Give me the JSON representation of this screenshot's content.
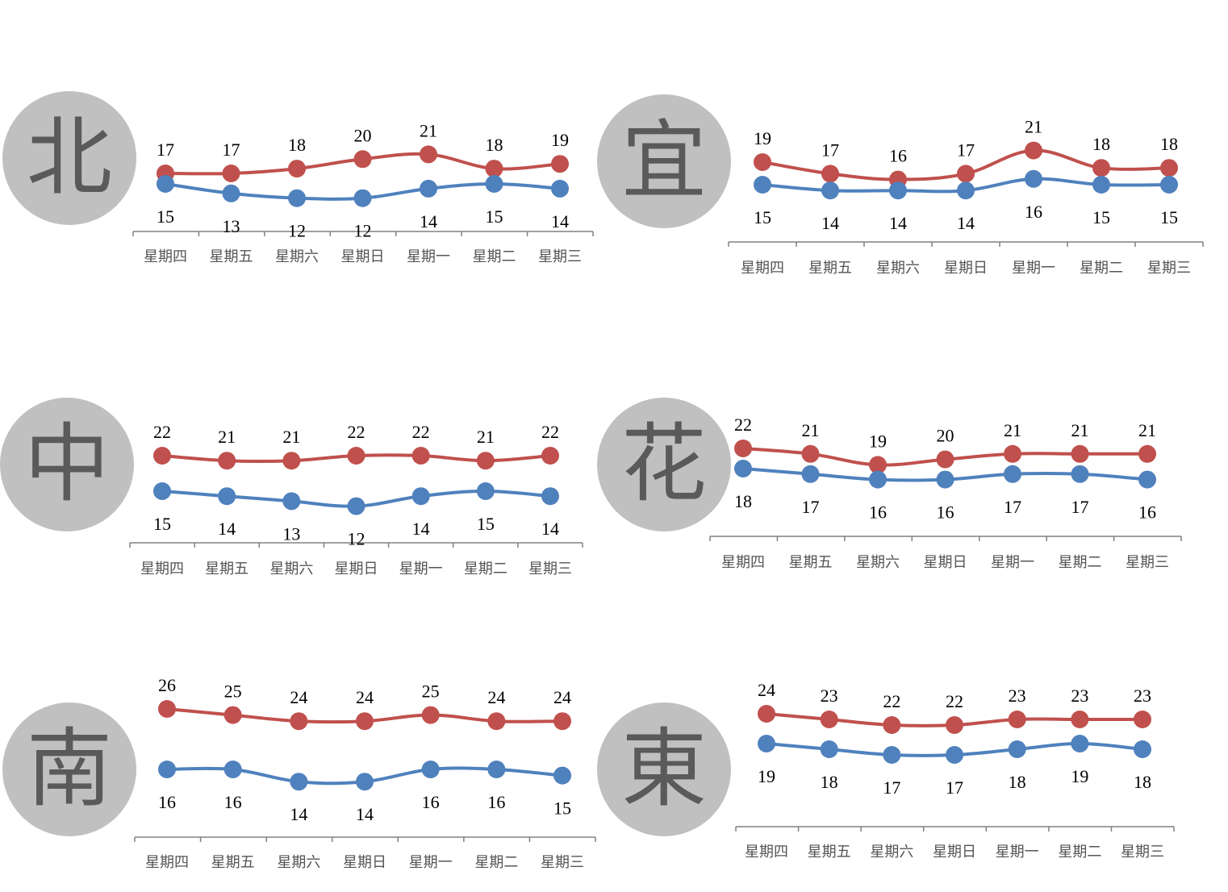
{
  "colors": {
    "high": "#c0504d",
    "low": "#4f81bd",
    "circle": "#c0c0c0",
    "axis": "#808080"
  },
  "categories": [
    "星期四",
    "星期五",
    "星期六",
    "星期日",
    "星期一",
    "星期二",
    "星期三"
  ],
  "chart_data": [
    {
      "type": "line",
      "region": "北",
      "categories": [
        "星期四",
        "星期五",
        "星期六",
        "星期日",
        "星期一",
        "星期二",
        "星期三"
      ],
      "series": [
        {
          "values": [
            17,
            17,
            18,
            20,
            21,
            18,
            19
          ]
        },
        {
          "values": [
            15,
            13,
            12,
            12,
            14,
            15,
            14
          ]
        }
      ]
    },
    {
      "type": "line",
      "region": "宜",
      "categories": [
        "星期四",
        "星期五",
        "星期六",
        "星期日",
        "星期一",
        "星期二",
        "星期三"
      ],
      "series": [
        {
          "values": [
            19,
            17,
            16,
            17,
            21,
            18,
            18
          ]
        },
        {
          "values": [
            15,
            14,
            14,
            14,
            16,
            15,
            15
          ]
        }
      ]
    },
    {
      "type": "line",
      "region": "中",
      "categories": [
        "星期四",
        "星期五",
        "星期六",
        "星期日",
        "星期一",
        "星期二",
        "星期三"
      ],
      "series": [
        {
          "values": [
            22,
            21,
            21,
            22,
            22,
            21,
            22
          ]
        },
        {
          "values": [
            15,
            14,
            13,
            12,
            14,
            15,
            14
          ]
        }
      ]
    },
    {
      "type": "line",
      "region": "花",
      "categories": [
        "星期四",
        "星期五",
        "星期六",
        "星期日",
        "星期一",
        "星期二",
        "星期三"
      ],
      "series": [
        {
          "values": [
            22,
            21,
            19,
            20,
            21,
            21,
            21
          ]
        },
        {
          "values": [
            18,
            17,
            16,
            16,
            17,
            17,
            16
          ]
        }
      ]
    },
    {
      "type": "line",
      "region": "南",
      "categories": [
        "星期四",
        "星期五",
        "星期六",
        "星期日",
        "星期一",
        "星期二",
        "星期三"
      ],
      "series": [
        {
          "values": [
            26,
            25,
            24,
            24,
            25,
            24,
            24
          ]
        },
        {
          "values": [
            16,
            16,
            14,
            14,
            16,
            16,
            15
          ]
        }
      ]
    },
    {
      "type": "line",
      "region": "東",
      "categories": [
        "星期四",
        "星期五",
        "星期六",
        "星期日",
        "星期一",
        "星期二",
        "星期三"
      ],
      "series": [
        {
          "values": [
            24,
            23,
            22,
            22,
            23,
            23,
            23
          ]
        },
        {
          "values": [
            19,
            18,
            17,
            17,
            18,
            19,
            18
          ]
        }
      ]
    }
  ]
}
